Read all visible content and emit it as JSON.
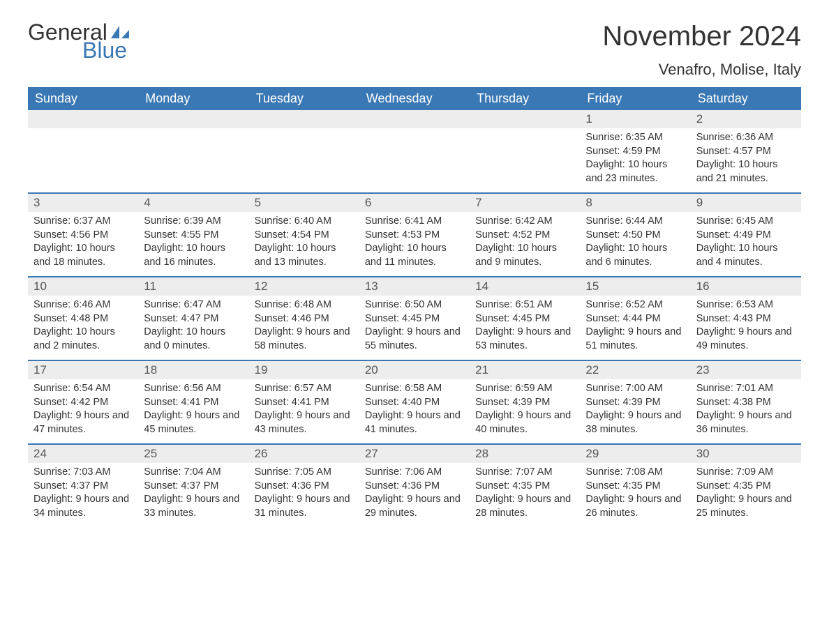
{
  "logo": {
    "text1": "General",
    "text2": "Blue",
    "icon_color": "#3a78b5"
  },
  "title": "November 2024",
  "location": "Venafro, Molise, Italy",
  "colors": {
    "header_bg": "#3a78b5",
    "header_text": "#ffffff",
    "daynum_bg": "#ededed",
    "border": "#3a78b5",
    "body_text": "#333333"
  },
  "day_headers": [
    "Sunday",
    "Monday",
    "Tuesday",
    "Wednesday",
    "Thursday",
    "Friday",
    "Saturday"
  ],
  "weeks": [
    [
      {
        "blank": true
      },
      {
        "blank": true
      },
      {
        "blank": true
      },
      {
        "blank": true
      },
      {
        "blank": true
      },
      {
        "day": 1,
        "sunrise": "6:35 AM",
        "sunset": "4:59 PM",
        "daylight": "10 hours and 23 minutes."
      },
      {
        "day": 2,
        "sunrise": "6:36 AM",
        "sunset": "4:57 PM",
        "daylight": "10 hours and 21 minutes."
      }
    ],
    [
      {
        "day": 3,
        "sunrise": "6:37 AM",
        "sunset": "4:56 PM",
        "daylight": "10 hours and 18 minutes."
      },
      {
        "day": 4,
        "sunrise": "6:39 AM",
        "sunset": "4:55 PM",
        "daylight": "10 hours and 16 minutes."
      },
      {
        "day": 5,
        "sunrise": "6:40 AM",
        "sunset": "4:54 PM",
        "daylight": "10 hours and 13 minutes."
      },
      {
        "day": 6,
        "sunrise": "6:41 AM",
        "sunset": "4:53 PM",
        "daylight": "10 hours and 11 minutes."
      },
      {
        "day": 7,
        "sunrise": "6:42 AM",
        "sunset": "4:52 PM",
        "daylight": "10 hours and 9 minutes."
      },
      {
        "day": 8,
        "sunrise": "6:44 AM",
        "sunset": "4:50 PM",
        "daylight": "10 hours and 6 minutes."
      },
      {
        "day": 9,
        "sunrise": "6:45 AM",
        "sunset": "4:49 PM",
        "daylight": "10 hours and 4 minutes."
      }
    ],
    [
      {
        "day": 10,
        "sunrise": "6:46 AM",
        "sunset": "4:48 PM",
        "daylight": "10 hours and 2 minutes."
      },
      {
        "day": 11,
        "sunrise": "6:47 AM",
        "sunset": "4:47 PM",
        "daylight": "10 hours and 0 minutes."
      },
      {
        "day": 12,
        "sunrise": "6:48 AM",
        "sunset": "4:46 PM",
        "daylight": "9 hours and 58 minutes."
      },
      {
        "day": 13,
        "sunrise": "6:50 AM",
        "sunset": "4:45 PM",
        "daylight": "9 hours and 55 minutes."
      },
      {
        "day": 14,
        "sunrise": "6:51 AM",
        "sunset": "4:45 PM",
        "daylight": "9 hours and 53 minutes."
      },
      {
        "day": 15,
        "sunrise": "6:52 AM",
        "sunset": "4:44 PM",
        "daylight": "9 hours and 51 minutes."
      },
      {
        "day": 16,
        "sunrise": "6:53 AM",
        "sunset": "4:43 PM",
        "daylight": "9 hours and 49 minutes."
      }
    ],
    [
      {
        "day": 17,
        "sunrise": "6:54 AM",
        "sunset": "4:42 PM",
        "daylight": "9 hours and 47 minutes."
      },
      {
        "day": 18,
        "sunrise": "6:56 AM",
        "sunset": "4:41 PM",
        "daylight": "9 hours and 45 minutes."
      },
      {
        "day": 19,
        "sunrise": "6:57 AM",
        "sunset": "4:41 PM",
        "daylight": "9 hours and 43 minutes."
      },
      {
        "day": 20,
        "sunrise": "6:58 AM",
        "sunset": "4:40 PM",
        "daylight": "9 hours and 41 minutes."
      },
      {
        "day": 21,
        "sunrise": "6:59 AM",
        "sunset": "4:39 PM",
        "daylight": "9 hours and 40 minutes."
      },
      {
        "day": 22,
        "sunrise": "7:00 AM",
        "sunset": "4:39 PM",
        "daylight": "9 hours and 38 minutes."
      },
      {
        "day": 23,
        "sunrise": "7:01 AM",
        "sunset": "4:38 PM",
        "daylight": "9 hours and 36 minutes."
      }
    ],
    [
      {
        "day": 24,
        "sunrise": "7:03 AM",
        "sunset": "4:37 PM",
        "daylight": "9 hours and 34 minutes."
      },
      {
        "day": 25,
        "sunrise": "7:04 AM",
        "sunset": "4:37 PM",
        "daylight": "9 hours and 33 minutes."
      },
      {
        "day": 26,
        "sunrise": "7:05 AM",
        "sunset": "4:36 PM",
        "daylight": "9 hours and 31 minutes."
      },
      {
        "day": 27,
        "sunrise": "7:06 AM",
        "sunset": "4:36 PM",
        "daylight": "9 hours and 29 minutes."
      },
      {
        "day": 28,
        "sunrise": "7:07 AM",
        "sunset": "4:35 PM",
        "daylight": "9 hours and 28 minutes."
      },
      {
        "day": 29,
        "sunrise": "7:08 AM",
        "sunset": "4:35 PM",
        "daylight": "9 hours and 26 minutes."
      },
      {
        "day": 30,
        "sunrise": "7:09 AM",
        "sunset": "4:35 PM",
        "daylight": "9 hours and 25 minutes."
      }
    ]
  ],
  "labels": {
    "sunrise": "Sunrise: ",
    "sunset": "Sunset: ",
    "daylight": "Daylight: "
  }
}
